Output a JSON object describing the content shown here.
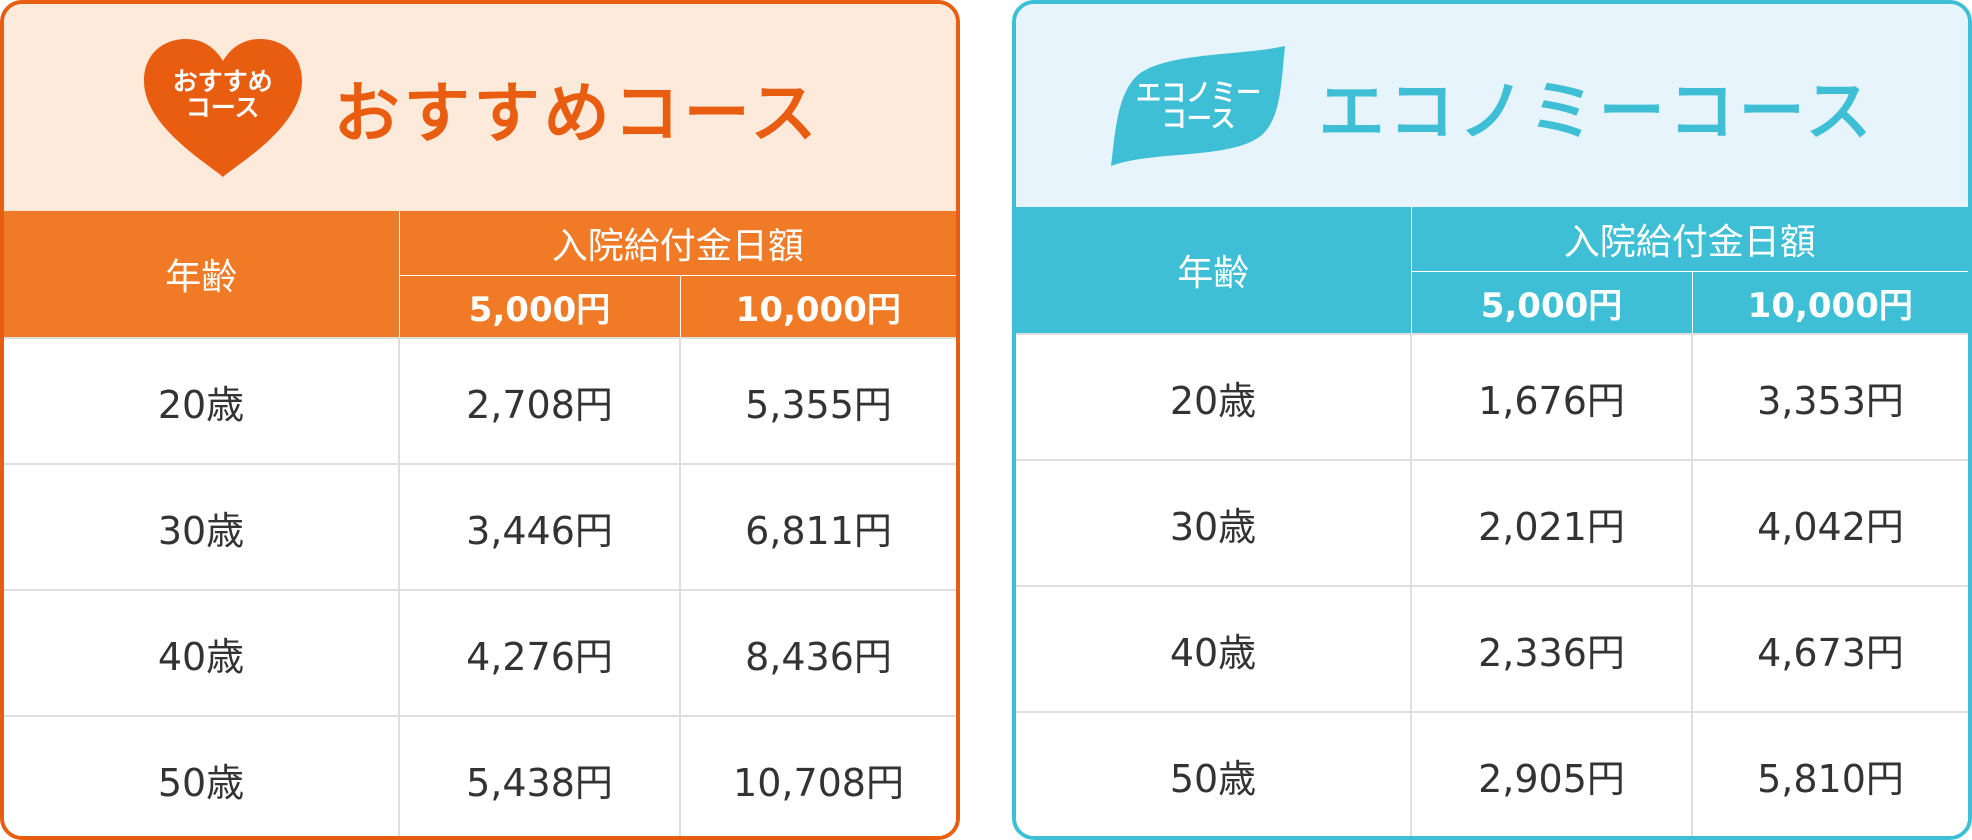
{
  "cards": [
    {
      "badge": {
        "line1": "おすすめ",
        "line2": "コース"
      },
      "title": "おすすめコース",
      "headers": {
        "age": "年齢",
        "benefit": "入院給付金日額",
        "amount1": "5,000円",
        "amount2": "10,000円"
      },
      "rows": [
        {
          "age": "20歳",
          "v1": "2,708円",
          "v2": "5,355円"
        },
        {
          "age": "30歳",
          "v1": "3,446円",
          "v2": "6,811円"
        },
        {
          "age": "40歳",
          "v1": "4,276円",
          "v2": "8,436円"
        },
        {
          "age": "50歳",
          "v1": "5,438円",
          "v2": "10,708円"
        }
      ]
    },
    {
      "badge": {
        "line1": "エコノミー",
        "line2": "コース"
      },
      "title": "エコノミーコース",
      "headers": {
        "age": "年齢",
        "benefit": "入院給付金日額",
        "amount1": "5,000円",
        "amount2": "10,000円"
      },
      "rows": [
        {
          "age": "20歳",
          "v1": "1,676円",
          "v2": "3,353円"
        },
        {
          "age": "30歳",
          "v1": "2,021円",
          "v2": "4,042円"
        },
        {
          "age": "40歳",
          "v1": "2,336円",
          "v2": "4,673円"
        },
        {
          "age": "50歳",
          "v1": "2,905円",
          "v2": "5,810円"
        }
      ]
    }
  ],
  "colors": {
    "recommended": "#e85d10",
    "recommended_header": "#f07a26",
    "recommended_bg": "#fdeadb",
    "economy": "#3ebfd6",
    "economy_bg": "#e8f4fc",
    "text": "#333333"
  },
  "icons": {
    "recommended_badge": "heart-badge-icon",
    "economy_badge": "leaf-badge-icon"
  }
}
